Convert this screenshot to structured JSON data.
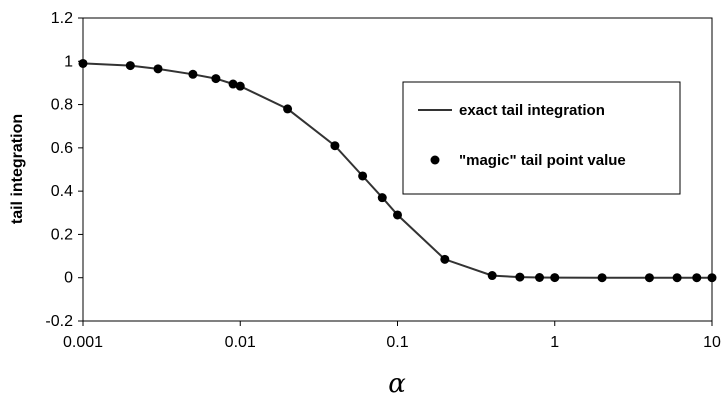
{
  "chart_data": {
    "type": "scatter",
    "xscale": "log",
    "xlim": [
      0.001,
      10
    ],
    "ylim": [
      -0.2,
      1.2
    ],
    "ylabel": "tail integration",
    "xlabel": "α",
    "xticks": [
      "0.001",
      "0.01",
      "0.1",
      "1",
      "10"
    ],
    "yticks": [
      "-0.2",
      "0",
      "0.2",
      "0.4",
      "0.6",
      "0.8",
      "1",
      "1.2"
    ],
    "grid": false,
    "legend_position": "right",
    "series": [
      {
        "name": "exact tail integration",
        "style": "line",
        "color": "#333333",
        "x": [
          0.001,
          0.002,
          0.003,
          0.005,
          0.007,
          0.009,
          0.01,
          0.02,
          0.04,
          0.06,
          0.08,
          0.1,
          0.2,
          0.4,
          0.6,
          0.8,
          1,
          2,
          4,
          6,
          8,
          10
        ],
        "y": [
          0.99,
          0.98,
          0.965,
          0.94,
          0.92,
          0.895,
          0.885,
          0.78,
          0.61,
          0.47,
          0.37,
          0.29,
          0.085,
          0.01,
          0.003,
          0.001,
          0.0005,
          0.0001,
          0.0,
          0.0,
          0.0,
          0.0
        ]
      },
      {
        "name": "\"magic\" tail point value",
        "style": "markers",
        "color": "#000000",
        "x": [
          0.001,
          0.002,
          0.003,
          0.005,
          0.007,
          0.009,
          0.01,
          0.02,
          0.04,
          0.06,
          0.08,
          0.1,
          0.2,
          0.4,
          0.6,
          0.8,
          1,
          2,
          4,
          6,
          8,
          10
        ],
        "y": [
          0.99,
          0.98,
          0.965,
          0.94,
          0.92,
          0.895,
          0.885,
          0.78,
          0.61,
          0.47,
          0.37,
          0.29,
          0.085,
          0.01,
          0.003,
          0.001,
          0.0005,
          0.0001,
          0.0,
          0.0,
          0.0,
          0.0
        ]
      }
    ]
  }
}
